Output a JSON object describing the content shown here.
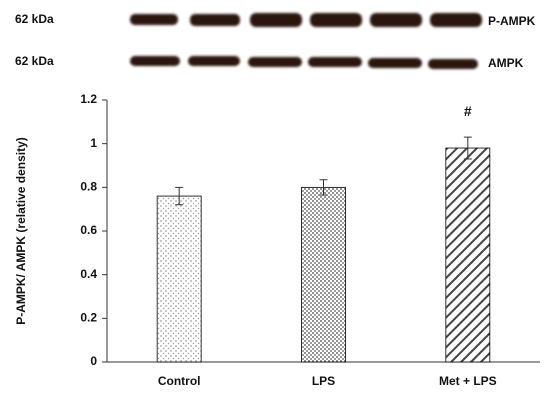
{
  "blot": {
    "rows": [
      {
        "weight": "62 kDa",
        "label": "P-AMPK"
      },
      {
        "weight": "62 kDa",
        "label": "AMPK"
      }
    ]
  },
  "chart_data": {
    "type": "bar",
    "y_label": "P-AMPK/ AMPK (relative density)",
    "categories": [
      "Control",
      "LPS",
      "Met + LPS"
    ],
    "values": [
      0.76,
      0.8,
      0.98
    ],
    "errors": [
      0.04,
      0.035,
      0.05
    ],
    "ylim": [
      0,
      1.2
    ],
    "yticks": [
      0,
      0.2,
      0.4,
      0.6,
      0.8,
      1,
      1.2
    ],
    "annotation": "#",
    "color": "#000000"
  }
}
